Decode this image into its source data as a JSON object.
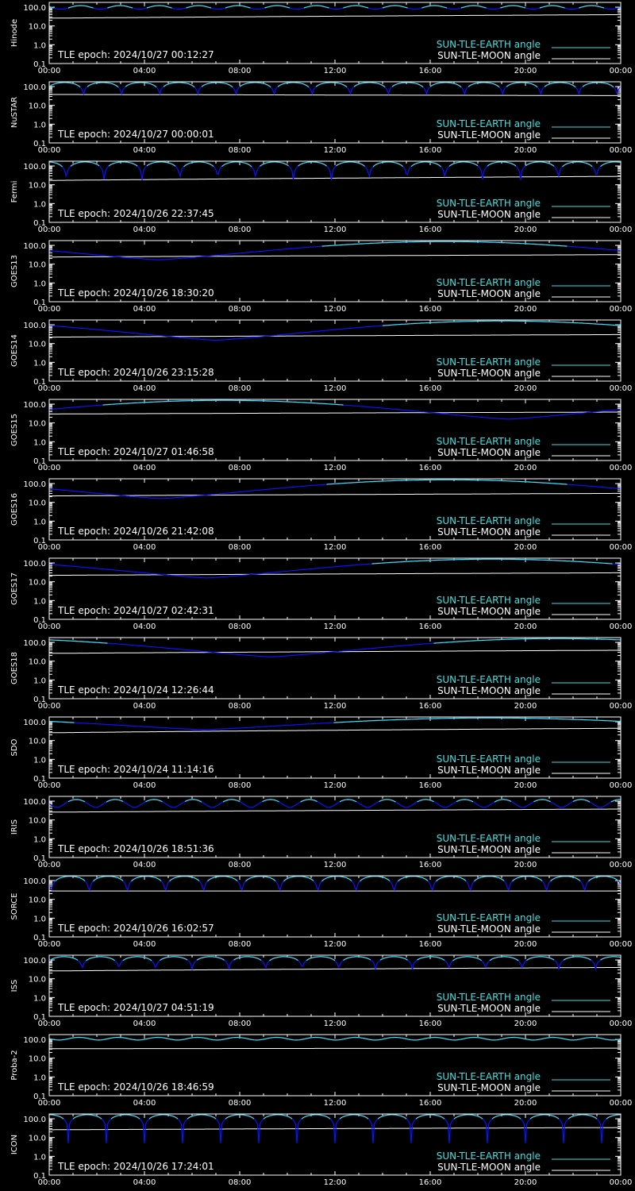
{
  "figure": {
    "background": "#000000",
    "axis_color": "#ffffff",
    "earth_color_lit": "#40e0e0",
    "earth_color_dark": "#1010ff",
    "moon_color": "#ffffff"
  },
  "legend": {
    "earth_label": "SUN-TLE-EARTH angle",
    "moon_label": "SUN-TLE-MOON angle"
  },
  "chart_data": [
    {
      "type": "line",
      "title": "",
      "ylabel": "Hinode",
      "xlabel": "",
      "x_ticks": [
        "00:00",
        "04:00",
        "08:00",
        "12:00",
        "16:00",
        "20:00",
        "00:00"
      ],
      "xlim": [
        0,
        24
      ],
      "ylim": [
        0.1,
        180
      ],
      "y_scale": "log",
      "y_ticks": [
        "0.1",
        "1.0",
        "10.0",
        "100.0"
      ],
      "epoch_text": "TLE epoch: 2024/10/27 00:12:27",
      "series": [
        {
          "name": "SUN-TLE-EARTH angle",
          "kind": "periodic",
          "period_hours": 1.65,
          "phase": 0.2,
          "center": 100,
          "amplitude": 22
        },
        {
          "name": "SUN-TLE-MOON angle",
          "kind": "linear",
          "start": 26,
          "end": 40
        }
      ]
    },
    {
      "type": "line",
      "title": "",
      "ylabel": "NuSTAR",
      "xlabel": "",
      "x_ticks": [
        "00:00",
        "04:00",
        "08:00",
        "12:00",
        "16:00",
        "20:00",
        "00:00"
      ],
      "xlim": [
        0,
        24
      ],
      "ylim": [
        0.1,
        180
      ],
      "y_scale": "log",
      "y_ticks": [
        "0.1",
        "1.0",
        "10.0",
        "100.0"
      ],
      "epoch_text": "TLE epoch: 2024/10/27 00:00:01",
      "series": [
        {
          "name": "SUN-TLE-EARTH angle",
          "kind": "arcs",
          "period_hours": 1.6,
          "phase": 0.1,
          "min": 25,
          "max": 165
        },
        {
          "name": "SUN-TLE-MOON angle",
          "kind": "linear",
          "start": 38,
          "end": 33
        }
      ]
    },
    {
      "type": "line",
      "title": "",
      "ylabel": "Fermi",
      "xlabel": "",
      "x_ticks": [
        "00:00",
        "04:00",
        "08:00",
        "12:00",
        "16:00",
        "20:00",
        "00:00"
      ],
      "xlim": [
        0,
        24
      ],
      "ylim": [
        0.1,
        180
      ],
      "y_scale": "log",
      "y_ticks": [
        "0.1",
        "1.0",
        "10.0",
        "100.0"
      ],
      "epoch_text": "TLE epoch: 2024/10/26 22:37:45",
      "series": [
        {
          "name": "SUN-TLE-EARTH angle",
          "kind": "arcs",
          "period_hours": 1.59,
          "phase": 0.55,
          "min": 6,
          "max": 165
        },
        {
          "name": "SUN-TLE-MOON angle",
          "kind": "linear",
          "start": 17,
          "end": 28
        }
      ]
    },
    {
      "type": "line",
      "title": "",
      "ylabel": "GOES13",
      "xlabel": "",
      "x_ticks": [
        "00:00",
        "04:00",
        "08:00",
        "12:00",
        "16:00",
        "20:00",
        "00:00"
      ],
      "xlim": [
        0,
        24
      ],
      "ylim": [
        0.1,
        180
      ],
      "y_scale": "log",
      "y_ticks": [
        "0.1",
        "1.0",
        "10.0",
        "100.0"
      ],
      "epoch_text": "TLE epoch: 2024/10/26 18:30:20",
      "series": [
        {
          "name": "SUN-TLE-EARTH angle",
          "kind": "daily",
          "min_hour": 4.6,
          "min": 17,
          "max": 160
        },
        {
          "name": "SUN-TLE-MOON angle",
          "kind": "linear",
          "start": 24,
          "end": 32
        }
      ]
    },
    {
      "type": "line",
      "title": "",
      "ylabel": "GOES14",
      "xlabel": "",
      "x_ticks": [
        "00:00",
        "04:00",
        "08:00",
        "12:00",
        "16:00",
        "20:00",
        "00:00"
      ],
      "xlim": [
        0,
        24
      ],
      "ylim": [
        0.1,
        180
      ],
      "y_scale": "log",
      "y_ticks": [
        "0.1",
        "1.0",
        "10.0",
        "100.0"
      ],
      "epoch_text": "TLE epoch: 2024/10/26 23:15:28",
      "series": [
        {
          "name": "SUN-TLE-EARTH angle",
          "kind": "daily",
          "min_hour": 7.0,
          "min": 15,
          "max": 160
        },
        {
          "name": "SUN-TLE-MOON angle",
          "kind": "linear",
          "start": 22,
          "end": 30
        }
      ]
    },
    {
      "type": "line",
      "title": "",
      "ylabel": "GOES15",
      "xlabel": "",
      "x_ticks": [
        "00:00",
        "04:00",
        "08:00",
        "12:00",
        "16:00",
        "20:00",
        "00:00"
      ],
      "xlim": [
        0,
        24
      ],
      "ylim": [
        0.1,
        180
      ],
      "y_scale": "log",
      "y_ticks": [
        "0.1",
        "1.0",
        "10.0",
        "100.0"
      ],
      "epoch_text": "TLE epoch: 2024/10/27 01:46:58",
      "series": [
        {
          "name": "SUN-TLE-EARTH angle",
          "kind": "daily",
          "min_hour": 19.3,
          "min": 16,
          "max": 160
        },
        {
          "name": "SUN-TLE-MOON angle",
          "kind": "linear",
          "start": 30,
          "end": 38
        }
      ]
    },
    {
      "type": "line",
      "title": "",
      "ylabel": "GOES16",
      "xlabel": "",
      "x_ticks": [
        "00:00",
        "04:00",
        "08:00",
        "12:00",
        "16:00",
        "20:00",
        "00:00"
      ],
      "xlim": [
        0,
        24
      ],
      "ylim": [
        0.1,
        180
      ],
      "y_scale": "log",
      "y_ticks": [
        "0.1",
        "1.0",
        "10.0",
        "100.0"
      ],
      "epoch_text": "TLE epoch: 2024/10/26 21:42:08",
      "series": [
        {
          "name": "SUN-TLE-EARTH angle",
          "kind": "daily",
          "min_hour": 4.7,
          "min": 16,
          "max": 160
        },
        {
          "name": "SUN-TLE-MOON angle",
          "kind": "linear",
          "start": 22,
          "end": 30
        }
      ]
    },
    {
      "type": "line",
      "title": "",
      "ylabel": "GOES17",
      "xlabel": "",
      "x_ticks": [
        "00:00",
        "04:00",
        "08:00",
        "12:00",
        "16:00",
        "20:00",
        "00:00"
      ],
      "xlim": [
        0,
        24
      ],
      "ylim": [
        0.1,
        180
      ],
      "y_scale": "log",
      "y_ticks": [
        "0.1",
        "1.0",
        "10.0",
        "100.0"
      ],
      "epoch_text": "TLE epoch: 2024/10/27 02:42:31",
      "series": [
        {
          "name": "SUN-TLE-EARTH angle",
          "kind": "daily",
          "min_hour": 6.6,
          "min": 16,
          "max": 160
        },
        {
          "name": "SUN-TLE-MOON angle",
          "kind": "linear",
          "start": 22,
          "end": 30
        }
      ]
    },
    {
      "type": "line",
      "title": "",
      "ylabel": "GOES18",
      "xlabel": "",
      "x_ticks": [
        "00:00",
        "04:00",
        "08:00",
        "12:00",
        "16:00",
        "20:00",
        "00:00"
      ],
      "xlim": [
        0,
        24
      ],
      "ylim": [
        0.1,
        180
      ],
      "y_scale": "log",
      "y_ticks": [
        "0.1",
        "1.0",
        "10.0",
        "100.0"
      ],
      "epoch_text": "TLE epoch: 2024/10/24 12:26:44",
      "series": [
        {
          "name": "SUN-TLE-EARTH angle",
          "kind": "daily",
          "min_hour": 9.3,
          "min": 17,
          "max": 160
        },
        {
          "name": "SUN-TLE-MOON angle",
          "kind": "linear",
          "start": 26,
          "end": 38
        }
      ]
    },
    {
      "type": "line",
      "title": "",
      "ylabel": "SDO",
      "xlabel": "",
      "x_ticks": [
        "00:00",
        "04:00",
        "08:00",
        "12:00",
        "16:00",
        "20:00",
        "00:00"
      ],
      "xlim": [
        0,
        24
      ],
      "ylim": [
        0.1,
        180
      ],
      "y_scale": "log",
      "y_ticks": [
        "0.1",
        "1.0",
        "10.0",
        "100.0"
      ],
      "epoch_text": "TLE epoch: 2024/10/24 11:14:16",
      "series": [
        {
          "name": "SUN-TLE-EARTH angle",
          "kind": "daily",
          "min_hour": 6.5,
          "min": 38,
          "max": 160
        },
        {
          "name": "SUN-TLE-MOON angle",
          "kind": "linear",
          "start": 26,
          "end": 45
        }
      ]
    },
    {
      "type": "line",
      "title": "",
      "ylabel": "IRIS",
      "xlabel": "",
      "x_ticks": [
        "00:00",
        "04:00",
        "08:00",
        "12:00",
        "16:00",
        "20:00",
        "00:00"
      ],
      "xlim": [
        0,
        24
      ],
      "ylim": [
        0.1,
        180
      ],
      "y_scale": "log",
      "y_ticks": [
        "0.1",
        "1.0",
        "10.0",
        "100.0"
      ],
      "epoch_text": "TLE epoch: 2024/10/26 18:51:36",
      "series": [
        {
          "name": "SUN-TLE-EARTH angle",
          "kind": "periodic",
          "period_hours": 1.63,
          "phase": 0.3,
          "center": 85,
          "amplitude": 38
        },
        {
          "name": "SUN-TLE-MOON angle",
          "kind": "linear",
          "start": 26,
          "end": 38
        }
      ]
    },
    {
      "type": "line",
      "title": "",
      "ylabel": "SORCE",
      "xlabel": "",
      "x_ticks": [
        "00:00",
        "04:00",
        "08:00",
        "12:00",
        "16:00",
        "20:00",
        "00:00"
      ],
      "xlim": [
        0,
        24
      ],
      "ylim": [
        0.1,
        180
      ],
      "y_scale": "log",
      "y_ticks": [
        "0.1",
        "1.0",
        "10.0",
        "100.0"
      ],
      "epoch_text": "TLE epoch: 2024/10/26 16:02:57",
      "series": [
        {
          "name": "SUN-TLE-EARTH angle",
          "kind": "arcs",
          "period_hours": 1.6,
          "phase": 0.95,
          "min": 3,
          "max": 170
        },
        {
          "name": "SUN-TLE-MOON angle",
          "kind": "linear",
          "start": 28,
          "end": 28
        }
      ]
    },
    {
      "type": "line",
      "title": "",
      "ylabel": "ISS",
      "xlabel": "",
      "x_ticks": [
        "00:00",
        "04:00",
        "08:00",
        "12:00",
        "16:00",
        "20:00",
        "00:00"
      ],
      "xlim": [
        0,
        24
      ],
      "ylim": [
        0.1,
        180
      ],
      "y_scale": "log",
      "y_ticks": [
        "0.1",
        "1.0",
        "10.0",
        "100.0"
      ],
      "epoch_text": "TLE epoch: 2024/10/27 04:51:19",
      "series": [
        {
          "name": "SUN-TLE-EARTH angle",
          "kind": "arcs",
          "period_hours": 1.54,
          "phase": 0.1,
          "min": 22,
          "max": 150
        },
        {
          "name": "SUN-TLE-MOON angle",
          "kind": "linear",
          "start": 26,
          "end": 40
        }
      ]
    },
    {
      "type": "line",
      "title": "",
      "ylabel": "Proba-2",
      "xlabel": "",
      "x_ticks": [
        "00:00",
        "04:00",
        "08:00",
        "12:00",
        "16:00",
        "20:00",
        "00:00"
      ],
      "xlim": [
        0,
        24
      ],
      "ylim": [
        0.1,
        180
      ],
      "y_scale": "log",
      "y_ticks": [
        "0.1",
        "1.0",
        "10.0",
        "100.0"
      ],
      "epoch_text": "TLE epoch: 2024/10/26 18:46:59",
      "series": [
        {
          "name": "SUN-TLE-EARTH angle",
          "kind": "periodic",
          "period_hours": 1.66,
          "phase": 0.25,
          "center": 110,
          "amplitude": 18
        },
        {
          "name": "SUN-TLE-MOON angle",
          "kind": "linear",
          "start": 32,
          "end": 34
        }
      ]
    },
    {
      "type": "line",
      "title": "",
      "ylabel": "ICON",
      "xlabel": "",
      "x_ticks": [
        "00:00",
        "04:00",
        "08:00",
        "12:00",
        "16:00",
        "20:00",
        "00:00"
      ],
      "xlim": [
        0,
        24
      ],
      "ylim": [
        0.1,
        180
      ],
      "y_scale": "log",
      "y_ticks": [
        "0.1",
        "1.0",
        "10.0",
        "100.0"
      ],
      "epoch_text": "TLE epoch: 2024/10/26 17:24:01",
      "series": [
        {
          "name": "SUN-TLE-EARTH angle",
          "kind": "arcs",
          "period_hours": 1.6,
          "phase": 0.5,
          "min": 5,
          "max": 165
        },
        {
          "name": "SUN-TLE-MOON angle",
          "kind": "linear",
          "start": 26,
          "end": 34
        }
      ]
    }
  ]
}
